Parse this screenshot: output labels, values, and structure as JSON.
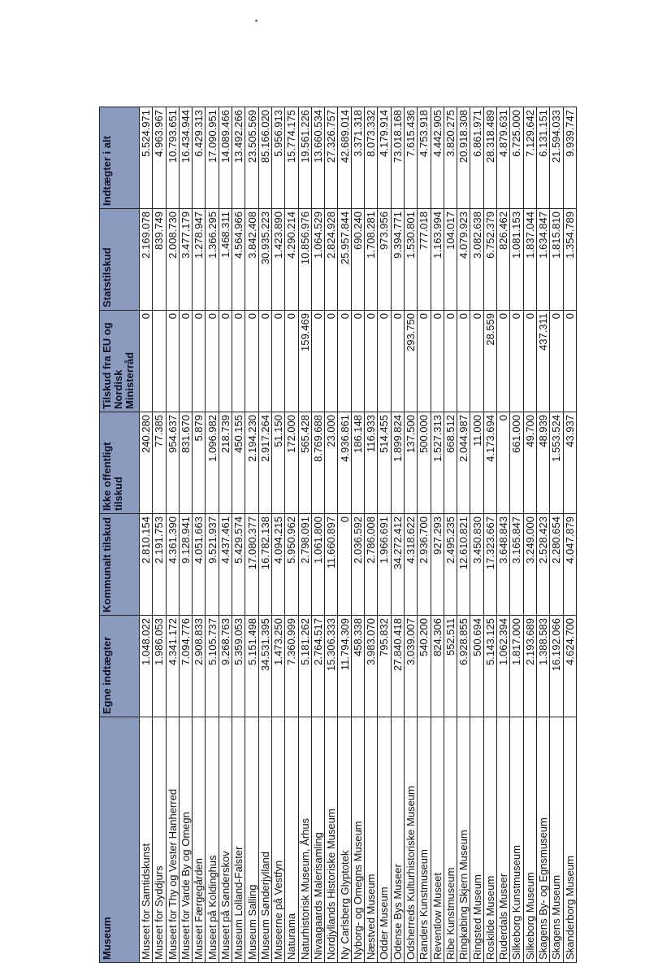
{
  "table": {
    "headers": [
      "Museum",
      "Egne indtægter",
      "Kommunalt tilskud",
      "Ikke offentligt tilskud",
      "Tilskud fra EU og Nordisk Ministerråd",
      "Statstilskud",
      "Indtægter i alt"
    ],
    "rows": [
      [
        "Museet for Samtidskunst",
        "1.048.022",
        "2.810.154",
        "240.280",
        "0",
        "2.169.078",
        "5.524.971"
      ],
      [
        "Museet for Syddjurs",
        "1.986.053",
        "2.191.753",
        "77.385",
        "",
        "839.749",
        "4.963.967"
      ],
      [
        "Museet for Thy og Vester Hanherred",
        "4.341.172",
        "4.361.390",
        "954.637",
        "0",
        "2.008.730",
        "10.793.651"
      ],
      [
        "Museet for Varde By og Omegn",
        "7.094.776",
        "9.128.941",
        "831.670",
        "0",
        "3.477.179",
        "16.434.944"
      ],
      [
        "Museet Færgegården",
        "2.908.833",
        "4.051.663",
        "5.879",
        "0",
        "1.278.947",
        "6.429.313"
      ],
      [
        "Museet på Koldinghus",
        "5.105.737",
        "9.521.937",
        "1.096.982",
        "0",
        "1.366.295",
        "17.090.951"
      ],
      [
        "Museet på Sønderskov",
        "9.268.763",
        "4.437.461",
        "218.739",
        "0",
        "1.468.311",
        "14.089.466"
      ],
      [
        "Museum Lolland-Falster",
        "5.359.053",
        "5.429.574",
        "450.155",
        "0",
        "4.564.966",
        "13.492.266"
      ],
      [
        "Museum Salling",
        "5.151.498",
        "17.080.377",
        "2.194.230",
        "0",
        "3.842.408",
        "23.505.569"
      ],
      [
        "Museum Sønderjylland",
        "34.531.395",
        "16.782.138",
        "2.917.264",
        "0",
        "30.935.223",
        "85.166.020"
      ],
      [
        "Museerne på Vestfyn",
        "1.473.250",
        "4.094.215",
        "51.150",
        "0",
        "1.423.890",
        "5.956.913"
      ],
      [
        "Naturama",
        "7.360.999",
        "5.950.962",
        "172.000",
        "0",
        "4.290.214",
        "15.774.175"
      ],
      [
        "Naturhistorisk Museum, Århus",
        "5.181.262",
        "2.798.091",
        "565.428",
        "159.469",
        "10.856.976",
        "19.561.226"
      ],
      [
        "Nivaagaards Malerisamling",
        "2.764.517",
        "1.061.800",
        "8.769.688",
        "0",
        "1.064.529",
        "13.660.534"
      ],
      [
        "Nordjyllands Historiske Museum",
        "15.306.333",
        "11.660.897",
        "23.000",
        "0",
        "2.824.928",
        "27.326.757"
      ],
      [
        "Ny Carlsberg Glyptotek",
        "11.794.309",
        "0",
        "4.936.861",
        "0",
        "25.957.844",
        "42.689.014"
      ],
      [
        "Nyborg- og Omegns Museum",
        "458.338",
        "2.036.592",
        "186.148",
        "0",
        "690.240",
        "3.371.318"
      ],
      [
        "Næstved Museum",
        "3.983.070",
        "2.786.008",
        "116.933",
        "0",
        "1.708.281",
        "8.073.332"
      ],
      [
        "Odder Museum",
        "795.832",
        "1.966.691",
        "514.455",
        "0",
        "973.956",
        "4.179.914"
      ],
      [
        "Odense Bys Museer",
        "27.840.418",
        "34.272.412",
        "1.899.824",
        "0",
        "9.394.771",
        "73.018.168"
      ],
      [
        "Odsherreds Kulturhistoriske Museum",
        "3.039.007",
        "4.318.622",
        "137.500",
        "293.750",
        "1.530.801",
        "7.615.436"
      ],
      [
        "Randers Kunstmuseum",
        "540.200",
        "2.936.700",
        "500.000",
        "0",
        "777.018",
        "4.753.918"
      ],
      [
        "Reventlow Museet",
        "824.306",
        "927.293",
        "1.527.313",
        "0",
        "1.163.994",
        "4.442.905"
      ],
      [
        "Ribe Kunstmuseum",
        "552.511",
        "2.495.235",
        "668.512",
        "0",
        "104.017",
        "3.820.275"
      ],
      [
        "Ringkøbing Skjern Museum",
        "6.928.855",
        "12.610.821",
        "2.044.987",
        "0",
        "4.079.923",
        "20.918.308"
      ],
      [
        "Ringsted Museum",
        "500.694",
        "3.450.830",
        "11.000",
        "0",
        "3.082.638",
        "6.861.971"
      ],
      [
        "Roskilde Museum",
        "5.143.125",
        "17.323.667",
        "4.173.694",
        "28.559",
        "6.752.379",
        "28.318.489"
      ],
      [
        "Ruderdals Museer",
        "1.062.394",
        "3.648.843",
        "0",
        "0",
        "826.462",
        "4.879.631"
      ],
      [
        "Silkeborg Kunstmuseum",
        "1.817.000",
        "3.165.847",
        "661.000",
        "0",
        "1.081.153",
        "6.725.000"
      ],
      [
        "Silkeborg Museum",
        "2.193.689",
        "3.249.000",
        "49.700",
        "0",
        "1.837.044",
        "7.129.642"
      ],
      [
        "Skagens By- og Egnsmuseum",
        "1.388.583",
        "2.528.423",
        "48.939",
        "437.311",
        "1.634.847",
        "6.131.151"
      ],
      [
        "Skagens Museum",
        "16.192.066",
        "2.280.654",
        "1.553.524",
        "0",
        "1.815.810",
        "21.594.033"
      ],
      [
        "Skanderborg Museum",
        "4.624.700",
        "4.047.879",
        "43.937",
        "0",
        "1.354.789",
        "9.939.747"
      ]
    ]
  }
}
